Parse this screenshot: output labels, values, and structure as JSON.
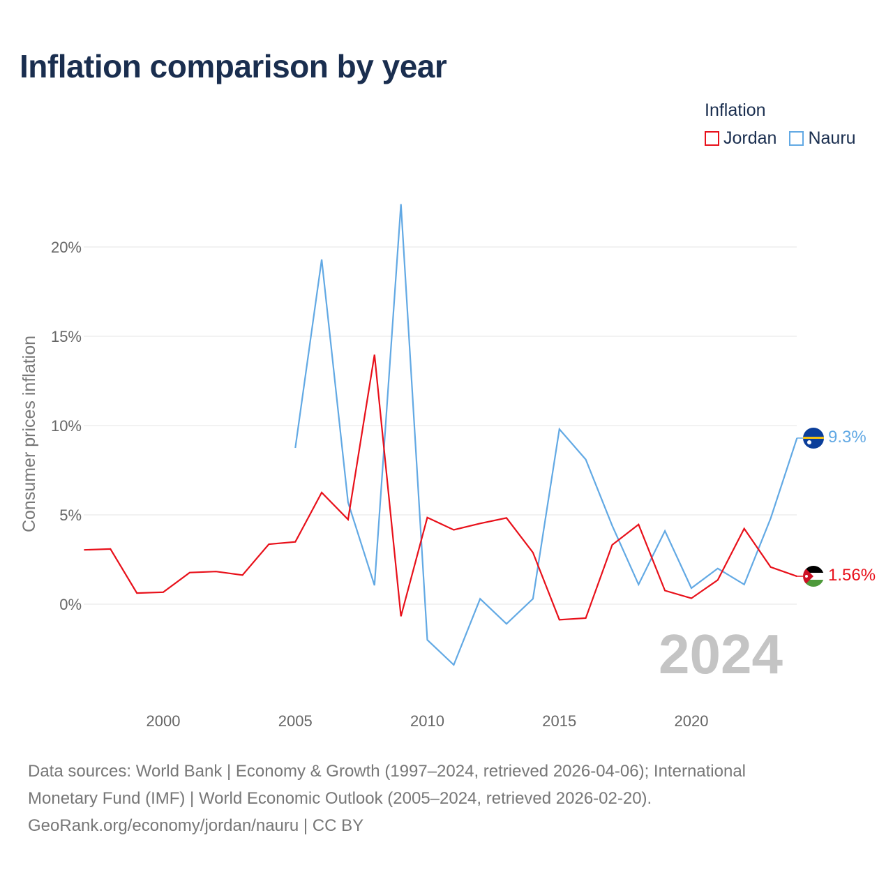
{
  "title": "Inflation comparison by year",
  "legend": {
    "title": "Inflation",
    "items": [
      {
        "label": "Jordan",
        "color": "#e8101a"
      },
      {
        "label": "Nauru",
        "color": "#62a9e4"
      }
    ]
  },
  "chart_data": {
    "type": "line",
    "title": "Inflation comparison by year",
    "ylabel": "Consumer prices inflation",
    "xlabel": "",
    "xlim": [
      1997,
      2024
    ],
    "ylim": [
      -5,
      22.5
    ],
    "y_ticks": [
      0,
      5,
      10,
      15,
      20
    ],
    "y_tick_labels": [
      "0%",
      "5%",
      "10%",
      "15%",
      "20%"
    ],
    "x_ticks": [
      2000,
      2005,
      2010,
      2015,
      2020
    ],
    "x_tick_labels": [
      "2000",
      "2005",
      "2010",
      "2015",
      "2020"
    ],
    "grid": true,
    "year_label": "2024",
    "series": [
      {
        "name": "Jordan",
        "color": "#e8101a",
        "end_label": "1.56%",
        "flag": "jordan-flag",
        "x": [
          1997,
          1998,
          1999,
          2000,
          2001,
          2002,
          2003,
          2004,
          2005,
          2006,
          2007,
          2008,
          2009,
          2010,
          2011,
          2012,
          2013,
          2014,
          2015,
          2016,
          2017,
          2018,
          2019,
          2020,
          2021,
          2022,
          2023,
          2024
        ],
        "values": [
          3.04,
          3.09,
          0.62,
          0.67,
          1.77,
          1.83,
          1.63,
          3.36,
          3.49,
          6.25,
          4.74,
          13.97,
          -0.68,
          4.85,
          4.16,
          4.52,
          4.83,
          2.89,
          -0.87,
          -0.78,
          3.32,
          4.46,
          0.76,
          0.33,
          1.35,
          4.23,
          2.08,
          1.56
        ]
      },
      {
        "name": "Nauru",
        "color": "#62a9e4",
        "end_label": "9.3%",
        "flag": "nauru-flag",
        "x": [
          2005,
          2006,
          2007,
          2008,
          2009,
          2010,
          2011,
          2012,
          2013,
          2014,
          2015,
          2016,
          2017,
          2018,
          2019,
          2020,
          2021,
          2022,
          2023,
          2024
        ],
        "values": [
          8.75,
          19.3,
          5.7,
          1.05,
          22.4,
          -2.0,
          -3.4,
          0.3,
          -1.1,
          0.3,
          9.8,
          8.1,
          4.4,
          1.1,
          4.1,
          0.9,
          2.0,
          1.1,
          4.8,
          9.3
        ]
      }
    ]
  },
  "footer": {
    "line1": "Data sources: World Bank | Economy & Growth (1997–2024, retrieved 2026-04-06); International",
    "line2": "Monetary Fund (IMF) | World Economic Outlook (2005–2024, retrieved 2026-02-20).",
    "line3": "GeoRank.org/economy/jordan/nauru | CC BY"
  }
}
